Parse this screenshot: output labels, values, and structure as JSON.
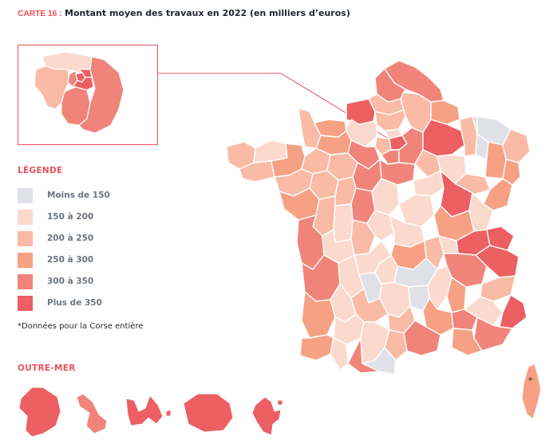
{
  "header": {
    "tag": "CARTE 16 :",
    "title": "Montant moyen des travaux en 2022 (en milliers d’euros)"
  },
  "legend": {
    "heading": "LÉGENDE",
    "items": [
      {
        "label": "Moins de 150",
        "color": "#dfe1e6"
      },
      {
        "label": "150 à 200",
        "color": "#fcd9cd"
      },
      {
        "label": "200 à 250",
        "color": "#f9bba5"
      },
      {
        "label": "250 à 300",
        "color": "#f6a184"
      },
      {
        "label": "300 à 350",
        "color": "#f1847a"
      },
      {
        "label": "Plus de 350",
        "color": "#ec5f62"
      }
    ]
  },
  "footnote": "*Données pour la Corse entière",
  "corsica_marker": "*",
  "overseas": {
    "heading": "OUTRE-MER",
    "territories": [
      {
        "name": "guyane",
        "class": "Plus de 350"
      },
      {
        "name": "martinique",
        "class": "300 à 350"
      },
      {
        "name": "guadeloupe",
        "class": "Plus de 350"
      },
      {
        "name": "reunion",
        "class": "Plus de 350"
      },
      {
        "name": "mayotte",
        "class": "Plus de 350"
      }
    ]
  },
  "colors": {
    "accent": "#e8525a",
    "border": "#ffffff"
  }
}
